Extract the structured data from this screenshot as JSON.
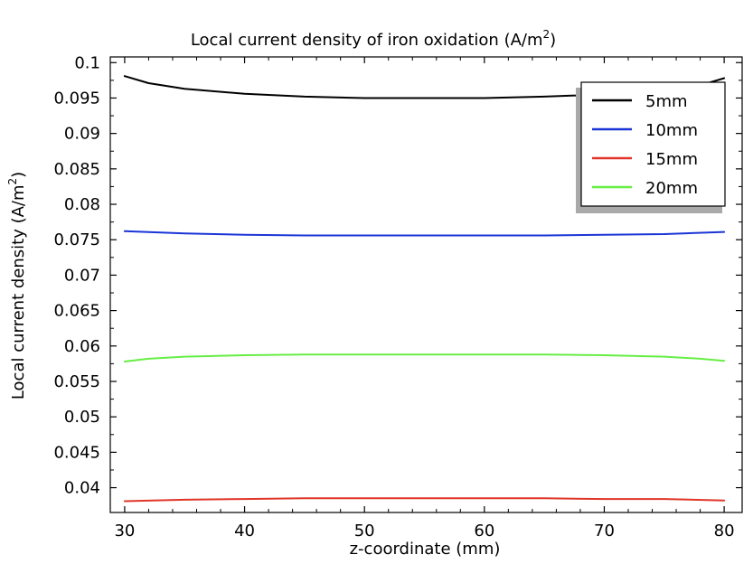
{
  "chart_data": {
    "type": "line",
    "title": "Local current density of iron oxidation (A/m",
    "title_sup": "2",
    "title_suffix": ")",
    "xlabel": "z-coordinate (mm)",
    "ylabel": "Local current density (A/m",
    "ylabel_sup": "2",
    "ylabel_suffix": ")",
    "xlim": [
      28.8,
      81.5
    ],
    "ylim": [
      0.0365,
      0.1008
    ],
    "x_ticks": [
      30,
      40,
      50,
      60,
      70,
      80
    ],
    "x_tick_labels": [
      "30",
      "40",
      "50",
      "60",
      "70",
      "80"
    ],
    "y_ticks": [
      0.04,
      0.045,
      0.05,
      0.055,
      0.06,
      0.065,
      0.07,
      0.075,
      0.08,
      0.085,
      0.09,
      0.095,
      0.1
    ],
    "y_tick_labels": [
      "0.04",
      "0.045",
      "0.05",
      "0.055",
      "0.06",
      "0.065",
      "0.07",
      "0.075",
      "0.08",
      "0.085",
      "0.09",
      "0.095",
      "0.1"
    ],
    "grid": false,
    "legend_position": "top-right",
    "series": [
      {
        "name": "5mm",
        "color": "#000000",
        "x": [
          30,
          32,
          35,
          40,
          45,
          50,
          55,
          60,
          65,
          70,
          75,
          78,
          80
        ],
        "y": [
          0.0981,
          0.0971,
          0.0963,
          0.0956,
          0.0952,
          0.095,
          0.095,
          0.095,
          0.0952,
          0.0955,
          0.0962,
          0.0968,
          0.0978
        ]
      },
      {
        "name": "10mm",
        "color": "#1a35d6",
        "x": [
          30,
          35,
          40,
          45,
          50,
          55,
          60,
          65,
          70,
          75,
          80
        ],
        "y": [
          0.0762,
          0.0759,
          0.0757,
          0.0756,
          0.0756,
          0.0756,
          0.0756,
          0.0756,
          0.0757,
          0.0758,
          0.0761
        ]
      },
      {
        "name": "15mm",
        "color": "#e03528",
        "x": [
          30,
          35,
          40,
          45,
          50,
          55,
          60,
          65,
          70,
          75,
          80
        ],
        "y": [
          0.0381,
          0.0383,
          0.0384,
          0.0385,
          0.0385,
          0.0385,
          0.0385,
          0.0385,
          0.0384,
          0.0384,
          0.0382
        ]
      },
      {
        "name": "20mm",
        "color": "#66ee44",
        "x": [
          30,
          32,
          35,
          40,
          45,
          50,
          55,
          60,
          65,
          70,
          75,
          78,
          80
        ],
        "y": [
          0.0578,
          0.0582,
          0.0585,
          0.0587,
          0.0588,
          0.0588,
          0.0588,
          0.0588,
          0.0588,
          0.0587,
          0.0585,
          0.0582,
          0.0579
        ]
      }
    ]
  }
}
